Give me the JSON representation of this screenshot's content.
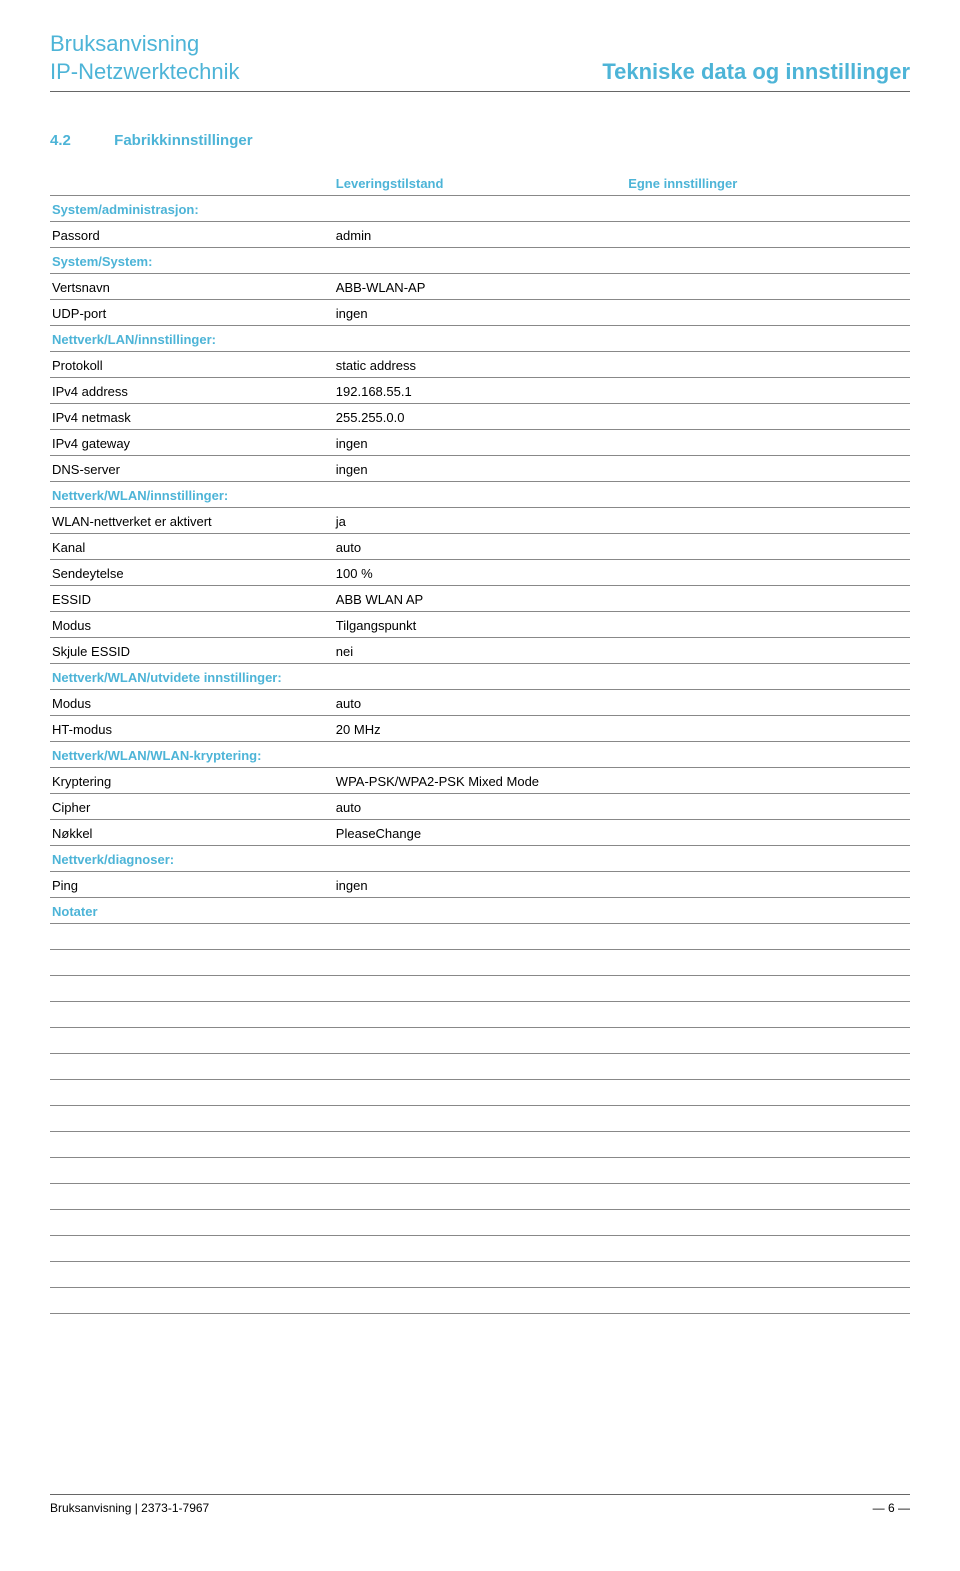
{
  "header": {
    "line1": "Bruksanvisning",
    "line2": "IP-Netzwerktechnik",
    "right": "Tekniske data og innstillinger"
  },
  "section": {
    "number": "4.2",
    "title": "Fabrikkinnstillinger"
  },
  "columns": {
    "col2_header": "Leveringstilstand",
    "col3_header": "Egne innstillinger"
  },
  "rows": [
    {
      "type": "group",
      "label": "System/administrasjon:"
    },
    {
      "type": "data",
      "label": "Passord",
      "value": "admin"
    },
    {
      "type": "group",
      "label": "System/System:"
    },
    {
      "type": "data",
      "label": "Vertsnavn",
      "value": "ABB-WLAN-AP"
    },
    {
      "type": "data",
      "label": "UDP-port",
      "value": "ingen"
    },
    {
      "type": "group",
      "label": "Nettverk/LAN/innstillinger:"
    },
    {
      "type": "data",
      "label": "Protokoll",
      "value": "static address"
    },
    {
      "type": "data",
      "label": "IPv4 address",
      "value": "192.168.55.1"
    },
    {
      "type": "data",
      "label": "IPv4 netmask",
      "value": "255.255.0.0"
    },
    {
      "type": "data",
      "label": "IPv4 gateway",
      "value": "ingen"
    },
    {
      "type": "data",
      "label": "DNS-server",
      "value": "ingen"
    },
    {
      "type": "group",
      "label": "Nettverk/WLAN/innstillinger:"
    },
    {
      "type": "data",
      "label": "WLAN-nettverket er aktivert",
      "value": "ja"
    },
    {
      "type": "data",
      "label": "Kanal",
      "value": "auto"
    },
    {
      "type": "data",
      "label": "Sendeytelse",
      "value": "100 %"
    },
    {
      "type": "data",
      "label": "ESSID",
      "value": "ABB WLAN AP"
    },
    {
      "type": "data",
      "label": "Modus",
      "value": "Tilgangspunkt"
    },
    {
      "type": "data",
      "label": "Skjule ESSID",
      "value": "nei"
    },
    {
      "type": "group",
      "label": "Nettverk/WLAN/utvidete innstillinger:"
    },
    {
      "type": "data",
      "label": "Modus",
      "value": "auto"
    },
    {
      "type": "data",
      "label": "HT-modus",
      "value": "20 MHz"
    },
    {
      "type": "group",
      "label": "Nettverk/WLAN/WLAN-kryptering:"
    },
    {
      "type": "data",
      "label": "Kryptering",
      "value": "WPA-PSK/WPA2-PSK Mixed Mode"
    },
    {
      "type": "data",
      "label": "Cipher",
      "value": "auto"
    },
    {
      "type": "data",
      "label": "Nøkkel",
      "value": "PleaseChange"
    },
    {
      "type": "group",
      "label": "Nettverk/diagnoser:"
    },
    {
      "type": "data",
      "label": "Ping",
      "value": "ingen"
    },
    {
      "type": "group",
      "label": "Notater"
    },
    {
      "type": "blank"
    },
    {
      "type": "blank"
    },
    {
      "type": "blank"
    },
    {
      "type": "blank"
    },
    {
      "type": "blank"
    },
    {
      "type": "blank"
    },
    {
      "type": "blank"
    },
    {
      "type": "blank"
    },
    {
      "type": "blank"
    },
    {
      "type": "blank"
    },
    {
      "type": "blank"
    },
    {
      "type": "blank"
    },
    {
      "type": "blank"
    },
    {
      "type": "blank"
    },
    {
      "type": "blank"
    }
  ],
  "footer": {
    "left": "Bruksanvisning | 2373-1-7967",
    "right": "— 6 —"
  },
  "colors": {
    "accent": "#4db4d7",
    "rule": "#888888",
    "text": "#000000",
    "background": "#ffffff"
  }
}
